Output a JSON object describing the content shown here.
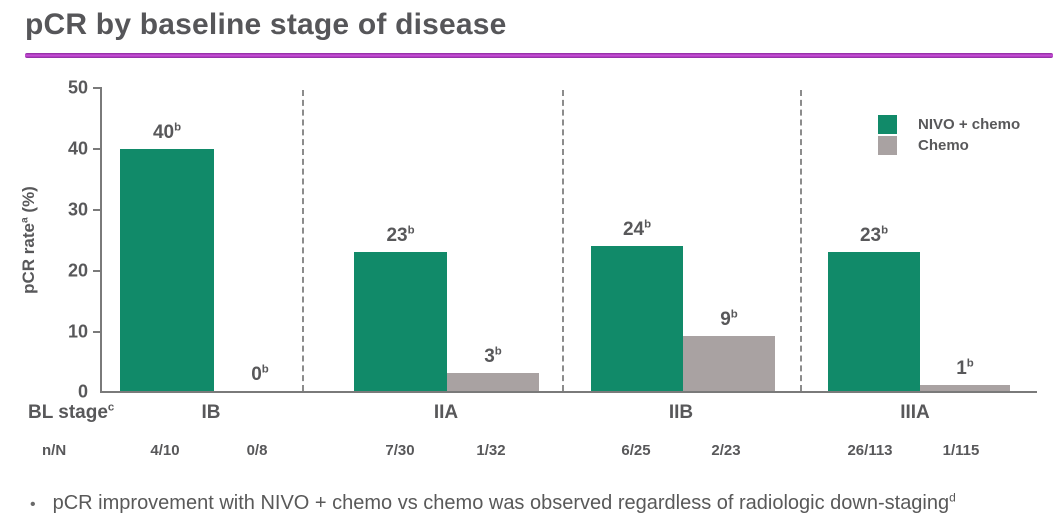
{
  "title": "pCR by baseline stage of disease",
  "colors": {
    "nivo_chemo_green": "#118a69",
    "chemo_gray": "#a9a2a2",
    "title_underline_magenta": "#b13cc4",
    "text_gray": "#58585a",
    "axis_gray": "#7a7a7a"
  },
  "y_axis": {
    "label_main": "pCR rate",
    "label_sup": "a",
    "label_unit": " (%)",
    "tick_labels_top_down": [
      "50",
      "40",
      "30",
      "20",
      "10",
      "0"
    ]
  },
  "x_axis": {
    "row_label_main": "BL stage",
    "row_label_sup": "c",
    "n_row_label": "n/N"
  },
  "legend": [
    {
      "label": "NIVO + chemo",
      "color": "#118a69"
    },
    {
      "label": "Chemo",
      "color": "#a9a2a2"
    }
  ],
  "chart_data": {
    "type": "bar",
    "title": "pCR by baseline stage of disease",
    "categories": [
      "IB",
      "IIA",
      "IIB",
      "IIIA"
    ],
    "series": [
      {
        "name": "NIVO + chemo",
        "color": "#118a69",
        "values": [
          40,
          23,
          24,
          23
        ],
        "n_over_N": [
          "4/10",
          "7/30",
          "6/25",
          "26/113"
        ]
      },
      {
        "name": "Chemo",
        "color": "#a9a2a2",
        "values": [
          0,
          3,
          9,
          1
        ],
        "n_over_N": [
          "0/8",
          "1/32",
          "2/23",
          "1/115"
        ]
      }
    ],
    "value_label_sup": "b",
    "xlabel": "BL stage",
    "ylabel": "pCR rate (%)",
    "ylim": [
      0,
      50
    ],
    "yticks": [
      0,
      10,
      20,
      30,
      40,
      50
    ],
    "grid": false,
    "legend_position": "top-right",
    "group_dividers": "dashed-vertical-between-groups"
  },
  "bullet": {
    "marker": "•",
    "text": "pCR improvement with NIVO + chemo vs chemo was observed regardless of radiologic down-staging",
    "sup": "d"
  }
}
